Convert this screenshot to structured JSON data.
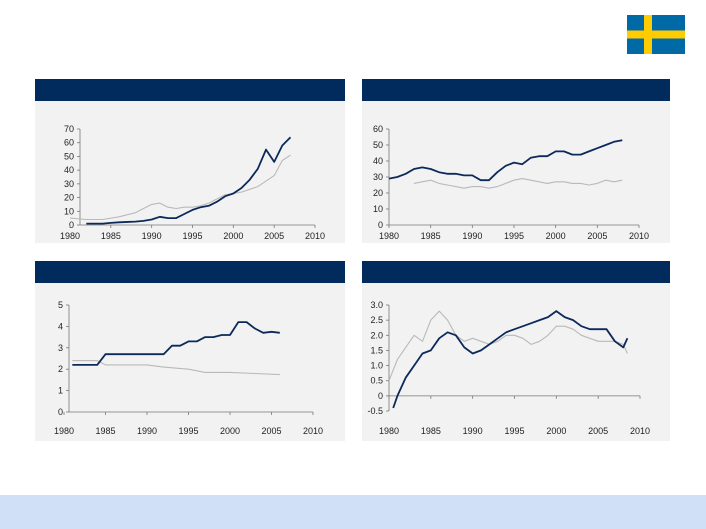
{
  "flag": {
    "name": "sweden-flag-icon",
    "blue": "#006AA7",
    "yellow": "#FECC00"
  },
  "colors": {
    "header": "#002b5c",
    "panel": "#f2f2f2",
    "footer": "#cfe0f7",
    "series_dark": "#0b2a5a",
    "series_light": "#b9b9b9"
  },
  "chart_data": [
    {
      "type": "line",
      "title": "",
      "x_ticks": [
        "1980",
        "1985",
        "1990",
        "1995",
        "2000",
        "2005",
        "2010"
      ],
      "y_ticks": [
        "0",
        "10",
        "20",
        "30",
        "40",
        "50",
        "60",
        "70"
      ],
      "xlim": [
        1980,
        2010
      ],
      "ylim": [
        0,
        70
      ],
      "grid": false,
      "series": [
        {
          "style": "dark",
          "x": [
            1982,
            1984,
            1985,
            1986,
            1988,
            1989,
            1990,
            1991,
            1992,
            1993,
            1994,
            1995,
            1996,
            1997,
            1998,
            1999,
            2000,
            2001,
            2002,
            2003,
            2004,
            2005,
            2006,
            2007
          ],
          "y": [
            1,
            1,
            1.5,
            2,
            2.5,
            3,
            4,
            6,
            5,
            5,
            8,
            11,
            13,
            14,
            17,
            21,
            23,
            27,
            33,
            41,
            55,
            46,
            58,
            64
          ]
        },
        {
          "style": "light",
          "x": [
            1980,
            1982,
            1984,
            1986,
            1988,
            1989,
            1990,
            1991,
            1992,
            1993,
            1994,
            1995,
            1996,
            1997,
            1998,
            1999,
            2000,
            2001,
            2002,
            2003,
            2004,
            2005,
            2006,
            2007
          ],
          "y": [
            5,
            4,
            4,
            6,
            9,
            12,
            15,
            16,
            13,
            12,
            13,
            13,
            14,
            16,
            19,
            22,
            23,
            24,
            26,
            28,
            32,
            36,
            47,
            51
          ]
        }
      ]
    },
    {
      "type": "line",
      "title": "",
      "x_ticks": [
        "1980",
        "1985",
        "1990",
        "1995",
        "2000",
        "2005",
        "2010"
      ],
      "y_ticks": [
        "0",
        "10",
        "20",
        "30",
        "40",
        "50",
        "60"
      ],
      "xlim": [
        1980,
        2010
      ],
      "ylim": [
        0,
        60
      ],
      "grid": false,
      "series": [
        {
          "style": "dark",
          "x": [
            1980,
            1981,
            1982,
            1983,
            1984,
            1985,
            1986,
            1987,
            1988,
            1989,
            1990,
            1991,
            1992,
            1993,
            1994,
            1995,
            1996,
            1997,
            1998,
            1999,
            2000,
            2001,
            2002,
            2003,
            2004,
            2005,
            2006,
            2007,
            2008
          ],
          "y": [
            29,
            30,
            32,
            35,
            36,
            35,
            33,
            32,
            32,
            31,
            31,
            28,
            28,
            33,
            37,
            39,
            38,
            42,
            43,
            43,
            46,
            46,
            44,
            44,
            46,
            48,
            50,
            52,
            53
          ]
        },
        {
          "style": "light",
          "x": [
            1983,
            1984,
            1985,
            1986,
            1987,
            1988,
            1989,
            1990,
            1991,
            1992,
            1993,
            1994,
            1995,
            1996,
            1997,
            1998,
            1999,
            2000,
            2001,
            2002,
            2003,
            2004,
            2005,
            2006,
            2007,
            2008
          ],
          "y": [
            26,
            27,
            28,
            26,
            25,
            24,
            23,
            24,
            24,
            23,
            24,
            26,
            28,
            29,
            28,
            27,
            26,
            27,
            27,
            26,
            26,
            25,
            26,
            28,
            27,
            28
          ]
        }
      ]
    },
    {
      "type": "line",
      "title": "",
      "x_ticks": [
        "1980",
        "1985",
        "1990",
        "1995",
        "2000",
        "2005",
        "2010"
      ],
      "y_ticks": [
        "0",
        "1",
        "2",
        "3",
        "4",
        "5"
      ],
      "xlim": [
        1980,
        2010
      ],
      "ylim": [
        0,
        5
      ],
      "grid": false,
      "series": [
        {
          "style": "dark",
          "x": [
            1981,
            1984,
            1985,
            1991,
            1992,
            1993,
            1994,
            1995,
            1996,
            1997,
            1998,
            1999,
            2000,
            2001,
            2002,
            2003,
            2004,
            2005,
            2006
          ],
          "y": [
            2.2,
            2.2,
            2.7,
            2.7,
            2.7,
            3.1,
            3.1,
            3.3,
            3.3,
            3.5,
            3.5,
            3.6,
            3.6,
            4.2,
            4.2,
            3.9,
            3.7,
            3.75,
            3.7
          ]
        },
        {
          "style": "light",
          "x": [
            1981,
            1984,
            1985,
            1990,
            1992,
            1995,
            1997,
            2000,
            2003,
            2006
          ],
          "y": [
            2.4,
            2.4,
            2.2,
            2.2,
            2.1,
            2.0,
            1.85,
            1.85,
            1.8,
            1.75
          ]
        }
      ]
    },
    {
      "type": "line",
      "title": "",
      "x_ticks": [
        "1980",
        "1985",
        "1990",
        "1995",
        "2000",
        "2005",
        "2010"
      ],
      "y_ticks": [
        "-0.5",
        "0",
        "0.5",
        "1.0",
        "1.5",
        "2.0",
        "2.5",
        "3.0"
      ],
      "xlim": [
        1980,
        2010
      ],
      "ylim": [
        -0.5,
        3.0
      ],
      "grid": false,
      "series": [
        {
          "style": "dark",
          "x": [
            1980.5,
            1981,
            1982,
            1983,
            1984,
            1985,
            1986,
            1987,
            1988,
            1989,
            1990,
            1991,
            1992,
            1993,
            1994,
            1995,
            1996,
            1997,
            1998,
            1999,
            2000,
            2001,
            2002,
            2003,
            2004,
            2005,
            2006,
            2007,
            2008,
            2008.5
          ],
          "y": [
            -0.4,
            0.0,
            0.6,
            1.0,
            1.4,
            1.5,
            1.9,
            2.1,
            2.0,
            1.6,
            1.4,
            1.5,
            1.7,
            1.9,
            2.1,
            2.2,
            2.3,
            2.4,
            2.5,
            2.6,
            2.8,
            2.6,
            2.5,
            2.3,
            2.2,
            2.2,
            2.2,
            1.8,
            1.6,
            1.9
          ]
        },
        {
          "style": "light",
          "x": [
            1980,
            1981,
            1982,
            1983,
            1984,
            1985,
            1986,
            1987,
            1988,
            1989,
            1990,
            1991,
            1992,
            1993,
            1994,
            1995,
            1996,
            1997,
            1998,
            1999,
            2000,
            2001,
            2002,
            2003,
            2004,
            2005,
            2006,
            2007,
            2008,
            2008.5
          ],
          "y": [
            0.5,
            1.2,
            1.6,
            2.0,
            1.8,
            2.5,
            2.8,
            2.5,
            2.0,
            1.8,
            1.9,
            1.8,
            1.7,
            1.8,
            2.0,
            2.0,
            1.9,
            1.7,
            1.8,
            2.0,
            2.3,
            2.3,
            2.2,
            2.0,
            1.9,
            1.8,
            1.8,
            1.8,
            1.7,
            1.4
          ]
        }
      ]
    }
  ]
}
